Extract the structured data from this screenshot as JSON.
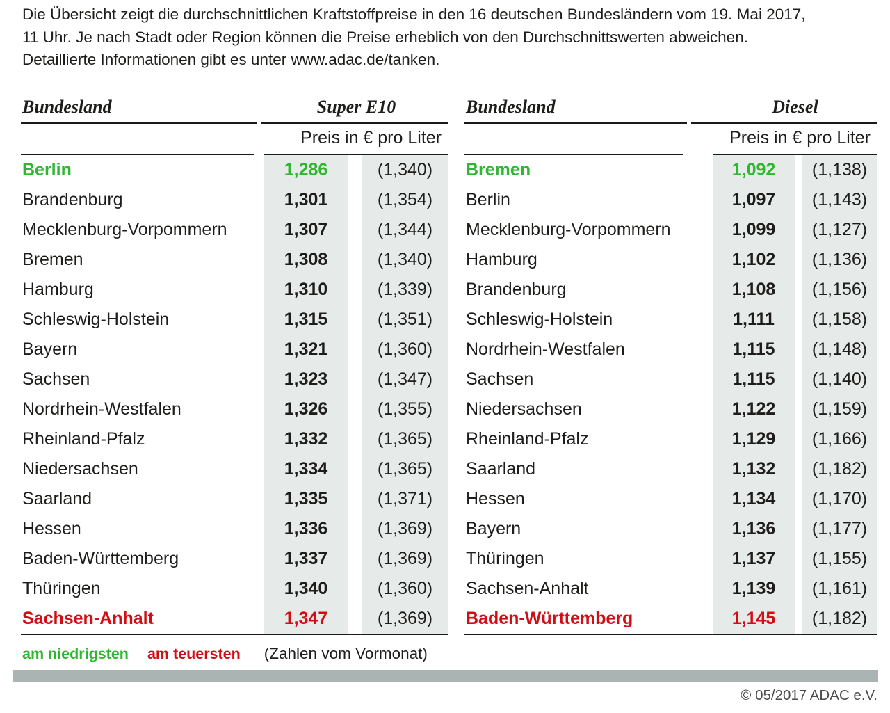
{
  "intro": {
    "lines": [
      "Die Übersicht zeigt die durchschnittlichen Kraftstoffpreise in den 16 deutschen Bundesländern vom 19. Mai 2017,",
      "11 Uhr. Je nach Stadt oder Region können die Preise erheblich von den Durchschnittswerten abweichen.",
      "Detaillierte Informationen gibt es unter www.adac.de/tanken."
    ]
  },
  "chart_data": [
    {
      "type": "table",
      "title": "Super E10",
      "col_header": "Bundesland",
      "unit_header": "Preis in € pro Liter",
      "value_note": "current price bold; value in parentheses = previous month",
      "rows": [
        {
          "name": "Berlin",
          "price": "1,286",
          "prev": "(1,340)",
          "highlight": "lowest"
        },
        {
          "name": "Brandenburg",
          "price": "1,301",
          "prev": "(1,354)"
        },
        {
          "name": "Mecklenburg-Vorpommern",
          "price": "1,307",
          "prev": "(1,344)"
        },
        {
          "name": "Bremen",
          "price": "1,308",
          "prev": "(1,340)"
        },
        {
          "name": "Hamburg",
          "price": "1,310",
          "prev": "(1,339)"
        },
        {
          "name": "Schleswig-Holstein",
          "price": "1,315",
          "prev": "(1,351)"
        },
        {
          "name": "Bayern",
          "price": "1,321",
          "prev": "(1,360)"
        },
        {
          "name": "Sachsen",
          "price": "1,323",
          "prev": "(1,347)"
        },
        {
          "name": "Nordrhein-Westfalen",
          "price": "1,326",
          "prev": "(1,355)"
        },
        {
          "name": "Rheinland-Pfalz",
          "price": "1,332",
          "prev": "(1,365)"
        },
        {
          "name": "Niedersachsen",
          "price": "1,334",
          "prev": "(1,365)"
        },
        {
          "name": "Saarland",
          "price": "1,335",
          "prev": "(1,371)"
        },
        {
          "name": "Hessen",
          "price": "1,336",
          "prev": "(1,369)"
        },
        {
          "name": "Baden-Württemberg",
          "price": "1,337",
          "prev": "(1,369)"
        },
        {
          "name": "Thüringen",
          "price": "1,340",
          "prev": "(1,360)"
        },
        {
          "name": "Sachsen-Anhalt",
          "price": "1,347",
          "prev": "(1,369)",
          "highlight": "highest"
        }
      ]
    },
    {
      "type": "table",
      "title": "Diesel",
      "col_header": "Bundesland",
      "unit_header": "Preis in € pro Liter",
      "value_note": "current price bold; value in parentheses = previous month",
      "rows": [
        {
          "name": "Bremen",
          "price": "1,092",
          "prev": "(1,138)",
          "highlight": "lowest"
        },
        {
          "name": "Berlin",
          "price": "1,097",
          "prev": "(1,143)"
        },
        {
          "name": "Mecklenburg-Vorpommern",
          "price": "1,099",
          "prev": "(1,127)"
        },
        {
          "name": "Hamburg",
          "price": "1,102",
          "prev": "(1,136)"
        },
        {
          "name": "Brandenburg",
          "price": "1,108",
          "prev": "(1,156)"
        },
        {
          "name": "Schleswig-Holstein",
          "price": "1,111",
          "prev": "(1,158)"
        },
        {
          "name": "Nordrhein-Westfalen",
          "price": "1,115",
          "prev": "(1,148)"
        },
        {
          "name": "Sachsen",
          "price": "1,115",
          "prev": "(1,140)"
        },
        {
          "name": "Niedersachsen",
          "price": "1,122",
          "prev": "(1,159)"
        },
        {
          "name": "Rheinland-Pfalz",
          "price": "1,129",
          "prev": "(1,166)"
        },
        {
          "name": "Saarland",
          "price": "1,132",
          "prev": "(1,182)"
        },
        {
          "name": "Hessen",
          "price": "1,134",
          "prev": "(1,170)"
        },
        {
          "name": "Bayern",
          "price": "1,136",
          "prev": "(1,177)"
        },
        {
          "name": "Thüringen",
          "price": "1,137",
          "prev": "(1,155)"
        },
        {
          "name": "Sachsen-Anhalt",
          "price": "1,139",
          "prev": "(1,161)"
        },
        {
          "name": "Baden-Württemberg",
          "price": "1,145",
          "prev": "(1,182)",
          "highlight": "highest"
        }
      ]
    }
  ],
  "legend": {
    "lowest": "am niedrigsten",
    "highest": "am teuersten",
    "note": "(Zahlen vom Vormonat)"
  },
  "copyright": "© 05/2017 ADAC e.V.",
  "colors": {
    "lowest_green": "#2fb72f",
    "highest_red": "#d10e15",
    "price_column_bg": "#e6eae8",
    "divider_bar": "#aab4b3",
    "text": "#1d1d1b"
  }
}
